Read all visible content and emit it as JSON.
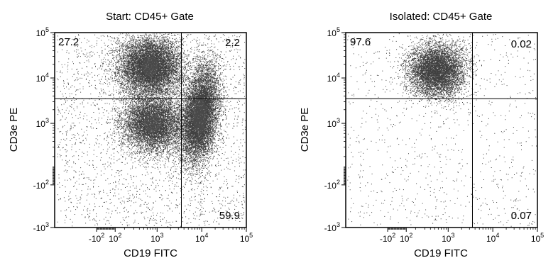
{
  "chart_data": [
    {
      "type": "scatter",
      "title": "Start: CD45+ Gate",
      "xlabel": "CD19 FITC",
      "ylabel": "CD3e PE",
      "x_scale": "biexponential",
      "y_scale": "biexponential",
      "xlim": [
        -1000,
        100000
      ],
      "ylim": [
        -1000,
        100000
      ],
      "x_ticks": [
        {
          "v": -100,
          "label": "-10",
          "exp": "2"
        },
        {
          "v": 100,
          "label": "10",
          "exp": "2"
        },
        {
          "v": 1000,
          "label": "10",
          "exp": "3"
        },
        {
          "v": 10000,
          "label": "10",
          "exp": "4"
        },
        {
          "v": 100000,
          "label": "10",
          "exp": "5"
        }
      ],
      "y_ticks": [
        {
          "v": -1000,
          "label": "-10",
          "exp": "3"
        },
        {
          "v": -100,
          "label": "-10",
          "exp": "2"
        },
        {
          "v": 1000,
          "label": "10",
          "exp": "3"
        },
        {
          "v": 10000,
          "label": "10",
          "exp": "4"
        },
        {
          "v": 100000,
          "label": "10",
          "exp": "5"
        }
      ],
      "gate": {
        "x": 3500,
        "y": 3500
      },
      "quadrants": {
        "top_left": "27.2",
        "top_right": "2.2",
        "bottom_left": "",
        "bottom_right": "59.9"
      },
      "populations": [
        {
          "x": 700,
          "y": 18000,
          "n": 9000
        },
        {
          "x": 800,
          "y": 1000,
          "n": 7000
        },
        {
          "x": 9000,
          "y": 1500,
          "n": 9500
        }
      ]
    },
    {
      "type": "scatter",
      "title": "Isolated: CD45+ Gate",
      "xlabel": "CD19 FITC",
      "ylabel": "CD3e PE",
      "x_scale": "biexponential",
      "y_scale": "biexponential",
      "xlim": [
        -1000,
        100000
      ],
      "ylim": [
        -1000,
        100000
      ],
      "x_ticks": [
        {
          "v": -100,
          "label": "-10",
          "exp": "2"
        },
        {
          "v": 100,
          "label": "10",
          "exp": "2"
        },
        {
          "v": 1000,
          "label": "10",
          "exp": "3"
        },
        {
          "v": 10000,
          "label": "10",
          "exp": "4"
        },
        {
          "v": 100000,
          "label": "10",
          "exp": "5"
        }
      ],
      "y_ticks": [
        {
          "v": -1000,
          "label": "-10",
          "exp": "3"
        },
        {
          "v": -100,
          "label": "-10",
          "exp": "2"
        },
        {
          "v": 1000,
          "label": "10",
          "exp": "3"
        },
        {
          "v": 10000,
          "label": "10",
          "exp": "4"
        },
        {
          "v": 100000,
          "label": "10",
          "exp": "5"
        }
      ],
      "gate": {
        "x": 3500,
        "y": 3500
      },
      "quadrants": {
        "top_left": "97.6",
        "top_right": "0.02",
        "bottom_left": "",
        "bottom_right": "0.07"
      },
      "populations": [
        {
          "x": 550,
          "y": 15000,
          "n": 7000
        }
      ]
    }
  ]
}
